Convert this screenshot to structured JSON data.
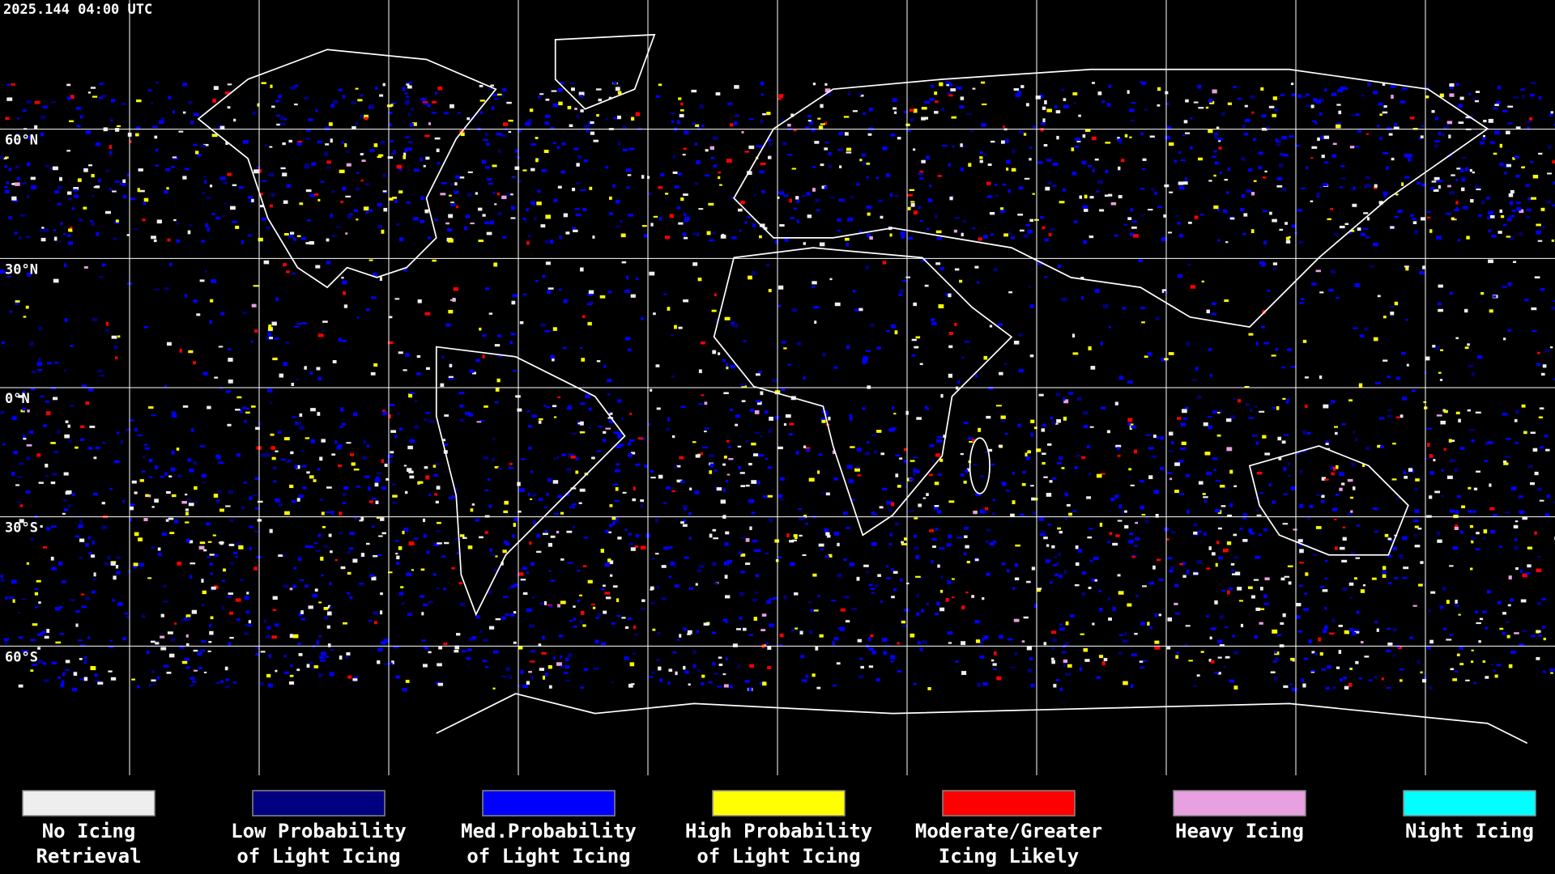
{
  "timestamp": "2025.144 04:00 UTC",
  "latitude_labels": [
    "60°N",
    "30°N",
    "0°N",
    "30°S",
    "60°S"
  ],
  "legend": [
    {
      "lines": [
        "No Icing",
        "Retrieval"
      ],
      "color": "#eeeeee"
    },
    {
      "lines": [
        "Low Probability",
        "of Light Icing"
      ],
      "color": "#000080"
    },
    {
      "lines": [
        "Med.Probability",
        "of Light Icing"
      ],
      "color": "#0000ff"
    },
    {
      "lines": [
        "High Probability",
        "of Light Icing"
      ],
      "color": "#ffff00"
    },
    {
      "lines": [
        "Moderate/Greater",
        "Icing Likely"
      ],
      "color": "#ff0000"
    },
    {
      "lines": [
        "Heavy Icing"
      ],
      "color": "#e8a0e0"
    },
    {
      "lines": [
        "Night Icing"
      ],
      "color": "#00ffff"
    }
  ]
}
